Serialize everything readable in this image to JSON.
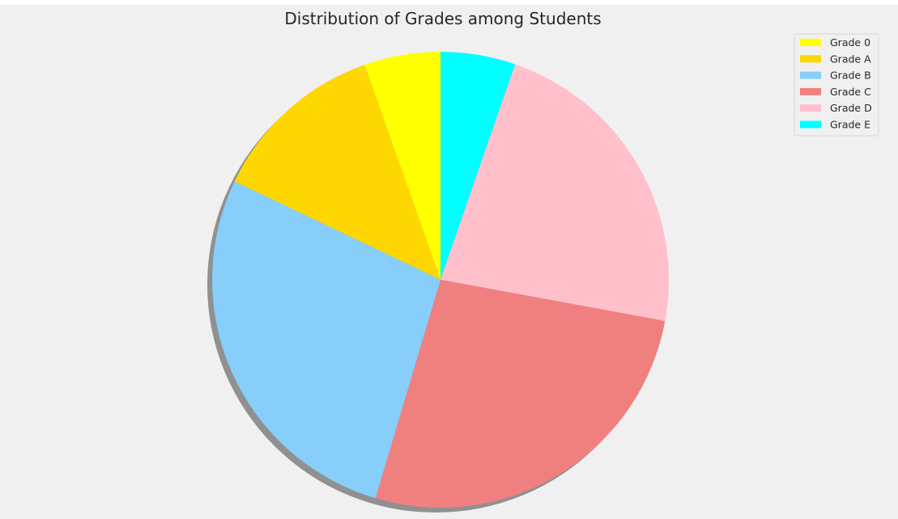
{
  "chart_data": {
    "type": "pie",
    "title": "Distribution of Grades among Students",
    "legend_position": "top-right",
    "shadow": true,
    "start_angle_deg": 90,
    "direction": "clockwise",
    "slices": [
      {
        "label": "Grade E",
        "value": 5.3,
        "color": "#00ffff"
      },
      {
        "label": "Grade D",
        "value": 22.6,
        "color": "#ffc0cb"
      },
      {
        "label": "Grade C",
        "value": 26.7,
        "color": "#f08080"
      },
      {
        "label": "Grade B",
        "value": 27.5,
        "color": "#87cefa"
      },
      {
        "label": "Grade A",
        "value": 12.5,
        "color": "#ffd700"
      },
      {
        "label": "Grade 0",
        "value": 5.4,
        "color": "#ffff00"
      }
    ],
    "legend": [
      "Grade 0",
      "Grade A",
      "Grade B",
      "Grade C",
      "Grade D",
      "Grade E"
    ]
  },
  "colors": {
    "figure_background": "#f0f0f0",
    "shadow": "#909090",
    "legend_frame": "#d8d8d8"
  }
}
